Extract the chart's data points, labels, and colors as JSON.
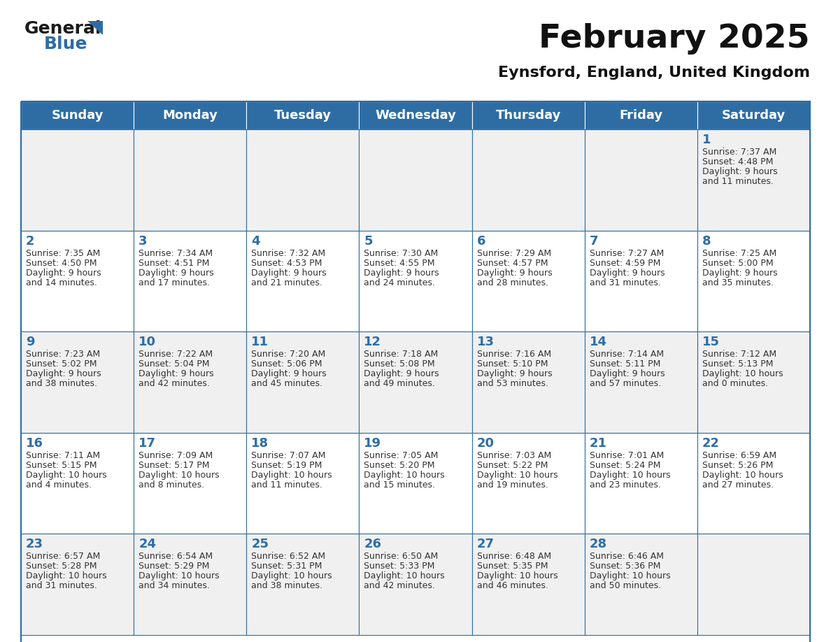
{
  "title": "February 2025",
  "subtitle": "Eynsford, England, United Kingdom",
  "days_of_week": [
    "Sunday",
    "Monday",
    "Tuesday",
    "Wednesday",
    "Thursday",
    "Friday",
    "Saturday"
  ],
  "header_bg": "#2E6DA4",
  "header_text": "#FFFFFF",
  "cell_bg_odd": "#F0F0F0",
  "cell_bg_even": "#FFFFFF",
  "cell_border": "#2E6DA4",
  "day_number_color": "#2E6DA4",
  "text_color": "#333333",
  "logo_general_color": "#1a1a1a",
  "logo_blue_color": "#2E6DA4",
  "title_fontsize": 34,
  "subtitle_fontsize": 16,
  "dow_fontsize": 13,
  "day_num_fontsize": 13,
  "cell_text_fontsize": 9,
  "calendar": [
    [
      {
        "day": null,
        "sunrise": null,
        "sunset": null,
        "daylight1": null,
        "daylight2": null
      },
      {
        "day": null,
        "sunrise": null,
        "sunset": null,
        "daylight1": null,
        "daylight2": null
      },
      {
        "day": null,
        "sunrise": null,
        "sunset": null,
        "daylight1": null,
        "daylight2": null
      },
      {
        "day": null,
        "sunrise": null,
        "sunset": null,
        "daylight1": null,
        "daylight2": null
      },
      {
        "day": null,
        "sunrise": null,
        "sunset": null,
        "daylight1": null,
        "daylight2": null
      },
      {
        "day": null,
        "sunrise": null,
        "sunset": null,
        "daylight1": null,
        "daylight2": null
      },
      {
        "day": 1,
        "sunrise": "7:37 AM",
        "sunset": "4:48 PM",
        "daylight1": "9 hours",
        "daylight2": "and 11 minutes."
      }
    ],
    [
      {
        "day": 2,
        "sunrise": "7:35 AM",
        "sunset": "4:50 PM",
        "daylight1": "9 hours",
        "daylight2": "and 14 minutes."
      },
      {
        "day": 3,
        "sunrise": "7:34 AM",
        "sunset": "4:51 PM",
        "daylight1": "9 hours",
        "daylight2": "and 17 minutes."
      },
      {
        "day": 4,
        "sunrise": "7:32 AM",
        "sunset": "4:53 PM",
        "daylight1": "9 hours",
        "daylight2": "and 21 minutes."
      },
      {
        "day": 5,
        "sunrise": "7:30 AM",
        "sunset": "4:55 PM",
        "daylight1": "9 hours",
        "daylight2": "and 24 minutes."
      },
      {
        "day": 6,
        "sunrise": "7:29 AM",
        "sunset": "4:57 PM",
        "daylight1": "9 hours",
        "daylight2": "and 28 minutes."
      },
      {
        "day": 7,
        "sunrise": "7:27 AM",
        "sunset": "4:59 PM",
        "daylight1": "9 hours",
        "daylight2": "and 31 minutes."
      },
      {
        "day": 8,
        "sunrise": "7:25 AM",
        "sunset": "5:00 PM",
        "daylight1": "9 hours",
        "daylight2": "and 35 minutes."
      }
    ],
    [
      {
        "day": 9,
        "sunrise": "7:23 AM",
        "sunset": "5:02 PM",
        "daylight1": "9 hours",
        "daylight2": "and 38 minutes."
      },
      {
        "day": 10,
        "sunrise": "7:22 AM",
        "sunset": "5:04 PM",
        "daylight1": "9 hours",
        "daylight2": "and 42 minutes."
      },
      {
        "day": 11,
        "sunrise": "7:20 AM",
        "sunset": "5:06 PM",
        "daylight1": "9 hours",
        "daylight2": "and 45 minutes."
      },
      {
        "day": 12,
        "sunrise": "7:18 AM",
        "sunset": "5:08 PM",
        "daylight1": "9 hours",
        "daylight2": "and 49 minutes."
      },
      {
        "day": 13,
        "sunrise": "7:16 AM",
        "sunset": "5:10 PM",
        "daylight1": "9 hours",
        "daylight2": "and 53 minutes."
      },
      {
        "day": 14,
        "sunrise": "7:14 AM",
        "sunset": "5:11 PM",
        "daylight1": "9 hours",
        "daylight2": "and 57 minutes."
      },
      {
        "day": 15,
        "sunrise": "7:12 AM",
        "sunset": "5:13 PM",
        "daylight1": "10 hours",
        "daylight2": "and 0 minutes."
      }
    ],
    [
      {
        "day": 16,
        "sunrise": "7:11 AM",
        "sunset": "5:15 PM",
        "daylight1": "10 hours",
        "daylight2": "and 4 minutes."
      },
      {
        "day": 17,
        "sunrise": "7:09 AM",
        "sunset": "5:17 PM",
        "daylight1": "10 hours",
        "daylight2": "and 8 minutes."
      },
      {
        "day": 18,
        "sunrise": "7:07 AM",
        "sunset": "5:19 PM",
        "daylight1": "10 hours",
        "daylight2": "and 11 minutes."
      },
      {
        "day": 19,
        "sunrise": "7:05 AM",
        "sunset": "5:20 PM",
        "daylight1": "10 hours",
        "daylight2": "and 15 minutes."
      },
      {
        "day": 20,
        "sunrise": "7:03 AM",
        "sunset": "5:22 PM",
        "daylight1": "10 hours",
        "daylight2": "and 19 minutes."
      },
      {
        "day": 21,
        "sunrise": "7:01 AM",
        "sunset": "5:24 PM",
        "daylight1": "10 hours",
        "daylight2": "and 23 minutes."
      },
      {
        "day": 22,
        "sunrise": "6:59 AM",
        "sunset": "5:26 PM",
        "daylight1": "10 hours",
        "daylight2": "and 27 minutes."
      }
    ],
    [
      {
        "day": 23,
        "sunrise": "6:57 AM",
        "sunset": "5:28 PM",
        "daylight1": "10 hours",
        "daylight2": "and 31 minutes."
      },
      {
        "day": 24,
        "sunrise": "6:54 AM",
        "sunset": "5:29 PM",
        "daylight1": "10 hours",
        "daylight2": "and 34 minutes."
      },
      {
        "day": 25,
        "sunrise": "6:52 AM",
        "sunset": "5:31 PM",
        "daylight1": "10 hours",
        "daylight2": "and 38 minutes."
      },
      {
        "day": 26,
        "sunrise": "6:50 AM",
        "sunset": "5:33 PM",
        "daylight1": "10 hours",
        "daylight2": "and 42 minutes."
      },
      {
        "day": 27,
        "sunrise": "6:48 AM",
        "sunset": "5:35 PM",
        "daylight1": "10 hours",
        "daylight2": "and 46 minutes."
      },
      {
        "day": 28,
        "sunrise": "6:46 AM",
        "sunset": "5:36 PM",
        "daylight1": "10 hours",
        "daylight2": "and 50 minutes."
      },
      {
        "day": null,
        "sunrise": null,
        "sunset": null,
        "daylight1": null,
        "daylight2": null
      }
    ]
  ]
}
